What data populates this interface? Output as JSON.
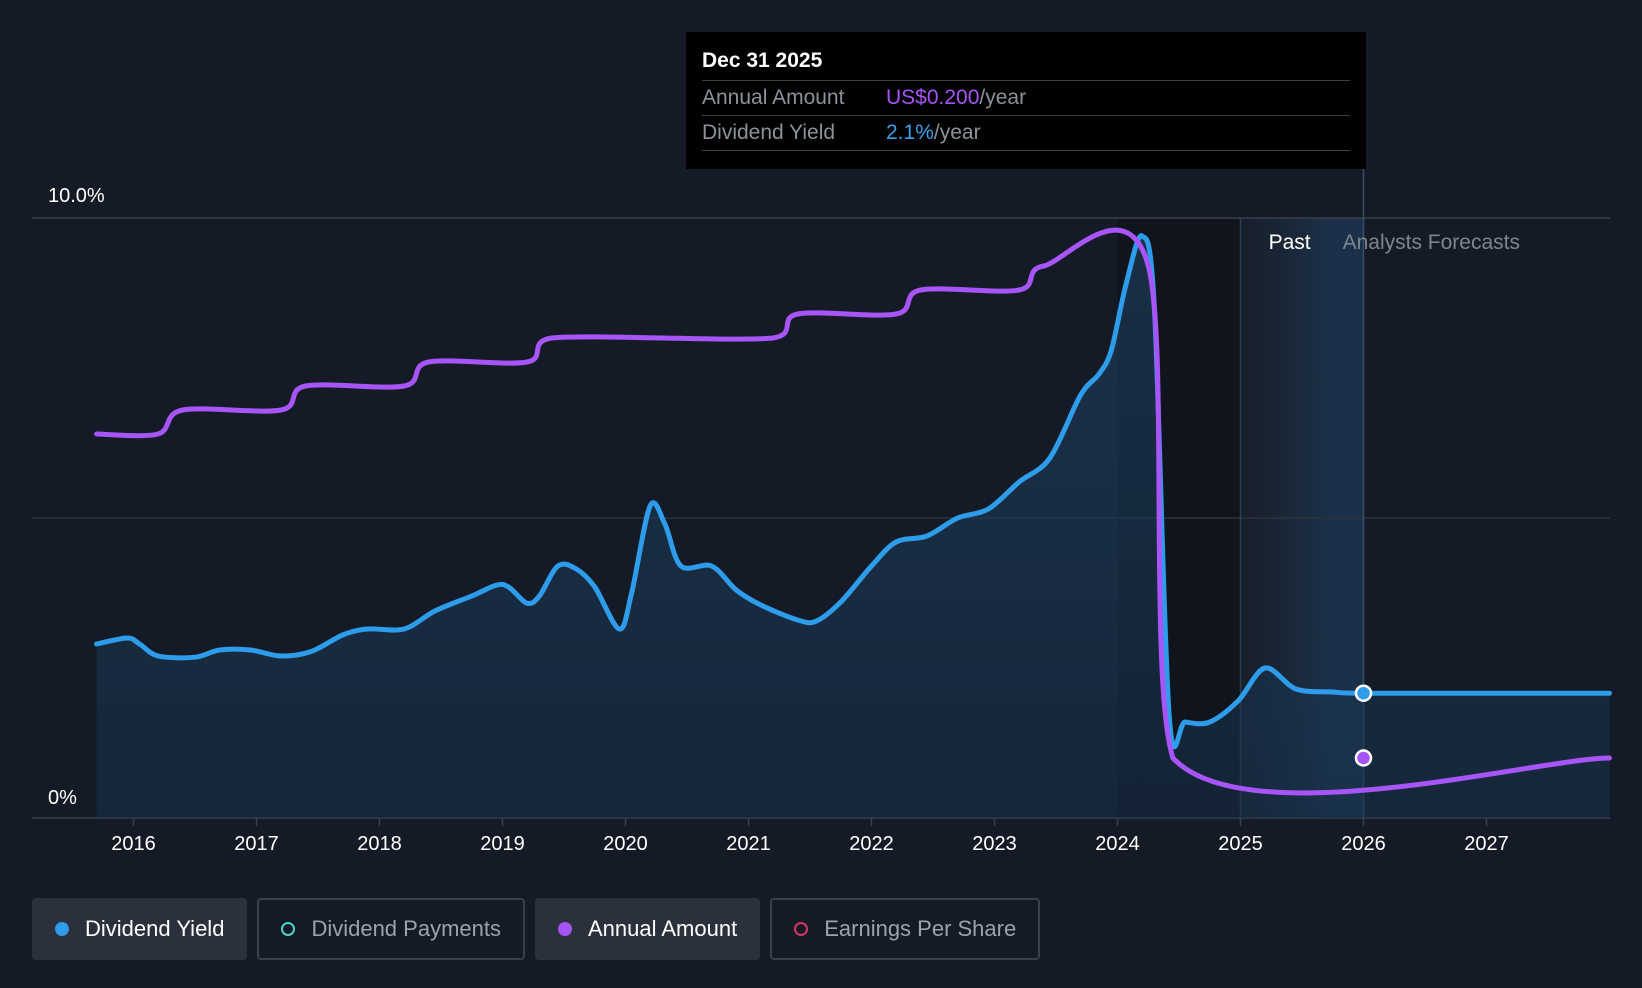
{
  "tooltip": {
    "date": "Dec 31 2025",
    "annual_label": "Annual Amount",
    "annual_value": "US$0.200",
    "annual_unit": "/year",
    "yield_label": "Dividend Yield",
    "yield_value": "2.1%",
    "yield_unit": "/year"
  },
  "legend": [
    {
      "label": "Dividend Yield",
      "color": "#2d9cea",
      "active": true,
      "filled": true
    },
    {
      "label": "Dividend Payments",
      "color": "#4fd1c5",
      "active": false,
      "filled": false
    },
    {
      "label": "Annual Amount",
      "color": "#a855f7",
      "active": true,
      "filled": true
    },
    {
      "label": "Earnings Per Share",
      "color": "#d6336c",
      "active": false,
      "filled": false
    }
  ],
  "colors": {
    "yield": "#2d9cea",
    "annual": "#a855f7",
    "background": "#151b26",
    "grid": "#3a404b"
  },
  "chart_data": {
    "type": "line",
    "y_tick_labels": [
      "10.0%",
      "0%"
    ],
    "ylim": [
      0,
      10
    ],
    "x_tick_labels": [
      "2016",
      "2017",
      "2018",
      "2019",
      "2020",
      "2021",
      "2022",
      "2023",
      "2024",
      "2025",
      "2026",
      "2027"
    ],
    "xlim": [
      2015.7,
      2028.0
    ],
    "past_label": "Past",
    "forecast_label": "Analysts Forecasts",
    "past_region_start": 2025.0,
    "forecast_start": 2025.7,
    "marker_x": 2026.0,
    "series": [
      {
        "name": "Dividend Yield",
        "key": "yield",
        "area": true,
        "points": [
          [
            2015.7,
            2.9
          ],
          [
            2015.95,
            3.0
          ],
          [
            2016.05,
            2.9
          ],
          [
            2016.2,
            2.7
          ],
          [
            2016.5,
            2.68
          ],
          [
            2016.7,
            2.8
          ],
          [
            2016.95,
            2.8
          ],
          [
            2017.2,
            2.7
          ],
          [
            2017.45,
            2.78
          ],
          [
            2017.7,
            3.05
          ],
          [
            2017.9,
            3.15
          ],
          [
            2018.2,
            3.15
          ],
          [
            2018.45,
            3.45
          ],
          [
            2018.75,
            3.7
          ],
          [
            2018.95,
            3.88
          ],
          [
            2019.05,
            3.85
          ],
          [
            2019.2,
            3.58
          ],
          [
            2019.3,
            3.7
          ],
          [
            2019.45,
            4.2
          ],
          [
            2019.6,
            4.15
          ],
          [
            2019.75,
            3.85
          ],
          [
            2019.95,
            3.15
          ],
          [
            2020.05,
            3.75
          ],
          [
            2020.2,
            5.2
          ],
          [
            2020.32,
            4.9
          ],
          [
            2020.45,
            4.2
          ],
          [
            2020.7,
            4.2
          ],
          [
            2020.9,
            3.8
          ],
          [
            2021.1,
            3.55
          ],
          [
            2021.4,
            3.3
          ],
          [
            2021.55,
            3.28
          ],
          [
            2021.75,
            3.6
          ],
          [
            2022.0,
            4.2
          ],
          [
            2022.2,
            4.6
          ],
          [
            2022.45,
            4.7
          ],
          [
            2022.7,
            5.0
          ],
          [
            2022.95,
            5.15
          ],
          [
            2023.2,
            5.6
          ],
          [
            2023.45,
            6.0
          ],
          [
            2023.7,
            7.05
          ],
          [
            2023.85,
            7.4
          ],
          [
            2023.95,
            7.8
          ],
          [
            2024.07,
            8.9
          ],
          [
            2024.2,
            9.7
          ],
          [
            2024.3,
            8.5
          ],
          [
            2024.42,
            1.7
          ],
          [
            2024.55,
            1.6
          ],
          [
            2024.75,
            1.6
          ],
          [
            2024.98,
            1.95
          ],
          [
            2025.2,
            2.5
          ],
          [
            2025.45,
            2.15
          ],
          [
            2025.75,
            2.1
          ],
          [
            2026.0,
            2.08
          ],
          [
            2028.0,
            2.08
          ]
        ]
      },
      {
        "name": "Annual Amount",
        "key": "annual",
        "area": false,
        "points": [
          [
            2015.7,
            6.4
          ],
          [
            2016.2,
            6.4
          ],
          [
            2016.4,
            6.8
          ],
          [
            2017.2,
            6.8
          ],
          [
            2017.4,
            7.2
          ],
          [
            2018.2,
            7.2
          ],
          [
            2018.4,
            7.6
          ],
          [
            2019.2,
            7.6
          ],
          [
            2019.4,
            8.0
          ],
          [
            2021.2,
            8.0
          ],
          [
            2021.4,
            8.4
          ],
          [
            2022.2,
            8.4
          ],
          [
            2022.4,
            8.8
          ],
          [
            2023.2,
            8.8
          ],
          [
            2023.4,
            9.2
          ],
          [
            2024.25,
            9.2
          ],
          [
            2024.45,
            1.0
          ],
          [
            2028.0,
            1.0
          ]
        ]
      }
    ]
  }
}
